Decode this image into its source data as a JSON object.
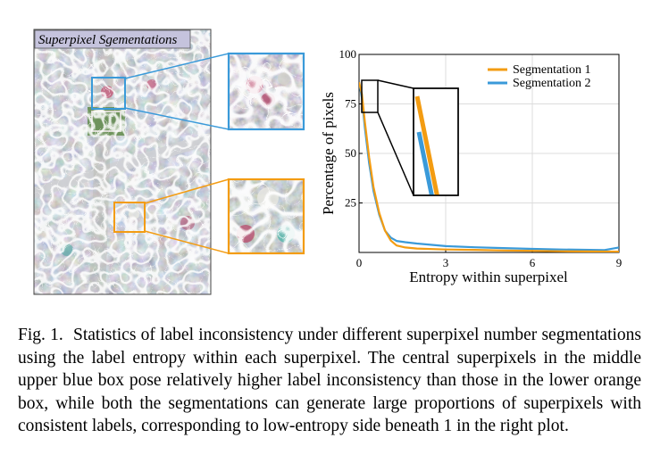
{
  "image_panel": {
    "title": "Superpixel Sgementations",
    "colors": {
      "blue_box": "#3a9ad9",
      "orange_box": "#f39c12"
    }
  },
  "chart_data": {
    "type": "line",
    "title": "",
    "xlabel": "Entropy within superpixel",
    "ylabel": "Percentage of pixels",
    "xlim": [
      0,
      9
    ],
    "ylim": [
      0,
      100
    ],
    "xticks": [
      0,
      3,
      6,
      9
    ],
    "yticks": [
      25,
      50,
      75,
      100
    ],
    "xtick_labels": [
      "0",
      "3",
      "6",
      "9"
    ],
    "ytick_labels": [
      "25",
      "50",
      "75",
      "100"
    ],
    "grid": true,
    "legend_position": "top-right",
    "inset": true,
    "series": [
      {
        "name": "Segmentation 1",
        "color": "#f39c12",
        "x": [
          0,
          0.1,
          0.2,
          0.35,
          0.5,
          0.7,
          0.9,
          1.1,
          1.3,
          1.6,
          2,
          3,
          4,
          5,
          6,
          7,
          8,
          9
        ],
        "y": [
          86,
          80,
          66,
          48,
          33,
          20,
          11,
          6,
          3.5,
          2.5,
          2,
          1.5,
          1.3,
          1,
          0.8,
          0.6,
          0.5,
          0.4
        ]
      },
      {
        "name": "Segmentation 2",
        "color": "#3a9ad9",
        "x": [
          0,
          0.1,
          0.2,
          0.35,
          0.5,
          0.7,
          0.9,
          1.1,
          1.3,
          1.6,
          2,
          3,
          4,
          5,
          6,
          7,
          8,
          8.5,
          9
        ],
        "y": [
          86,
          78,
          63,
          45,
          31,
          19,
          11,
          7.5,
          5.8,
          5.2,
          4.5,
          3.2,
          2.6,
          2.2,
          1.8,
          1.5,
          1.3,
          1.2,
          2.5
        ]
      }
    ]
  },
  "caption": {
    "label": "Fig. 1.",
    "text": "Statistics of label inconsistency under different superpixel number segmentations using the label entropy within each superpixel. The central superpixels in the middle upper blue box pose relatively higher label inconsistency than those in the lower orange box, while both the segmentations can generate large proportions of superpixels with consistent labels, corresponding to low-entropy side beneath 1 in the right plot."
  }
}
